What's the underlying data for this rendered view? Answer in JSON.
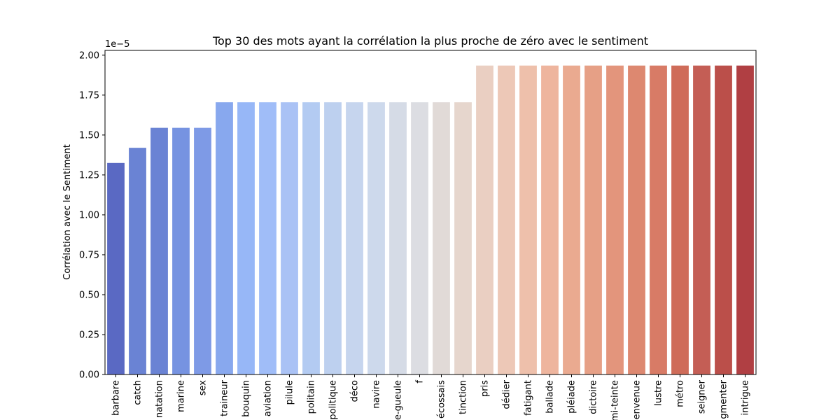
{
  "chart_data": {
    "type": "bar",
    "title": "Top 30 des mots ayant la corrélation la plus proche de zéro avec le sentiment",
    "xlabel": "",
    "ylabel": "Corrélation avec le Sentiment",
    "y_offset_text": "1e−5",
    "ylim": [
      0,
      2.03
    ],
    "yticks": [
      "0.00",
      "0.25",
      "0.50",
      "0.75",
      "1.00",
      "1.25",
      "1.50",
      "1.75",
      "2.00"
    ],
    "categories": [
      "barbare",
      "catch",
      "natation",
      "marine",
      "sex",
      "traineur",
      "bouquin",
      "aviation",
      "pilule",
      "politain",
      "politique",
      "déco",
      "navire",
      "e-gueule",
      "f",
      "écossais",
      "tinction",
      "pris",
      "dédier",
      "fatigant",
      "ballade",
      "pléiade",
      "dictoire",
      "mi-teinte",
      "envenue",
      "lustre",
      "métro",
      "seigner",
      "gmenter",
      "intrigue"
    ],
    "values": [
      1.325,
      1.42,
      1.545,
      1.545,
      1.545,
      1.705,
      1.705,
      1.705,
      1.705,
      1.705,
      1.705,
      1.705,
      1.705,
      1.705,
      1.705,
      1.705,
      1.705,
      1.935,
      1.935,
      1.935,
      1.935,
      1.935,
      1.935,
      1.935,
      1.935,
      1.935,
      1.935,
      1.935,
      1.935,
      1.935
    ],
    "value_scale": "1e-5",
    "colors": [
      "#5a69c3",
      "#6a83d4",
      "#6a83d4",
      "#7693e1",
      "#7e9ae6",
      "#88a8ee",
      "#97b7f7",
      "#a0bdf8",
      "#aac2f5",
      "#b3cbf2",
      "#bdd0ef",
      "#c6d5ee",
      "#cdd9ec",
      "#d5dbe6",
      "#dcdde2",
      "#e1dad7",
      "#e6d6cd",
      "#eacfc2",
      "#edc8b7",
      "#eec0ab",
      "#eeb59e",
      "#eaaa90",
      "#e6a086",
      "#e3957c",
      "#dd8870",
      "#d87b66",
      "#cf6c59",
      "#c45e55",
      "#bb4f4a",
      "#b03f43"
    ],
    "grid": false,
    "legend": "none"
  }
}
